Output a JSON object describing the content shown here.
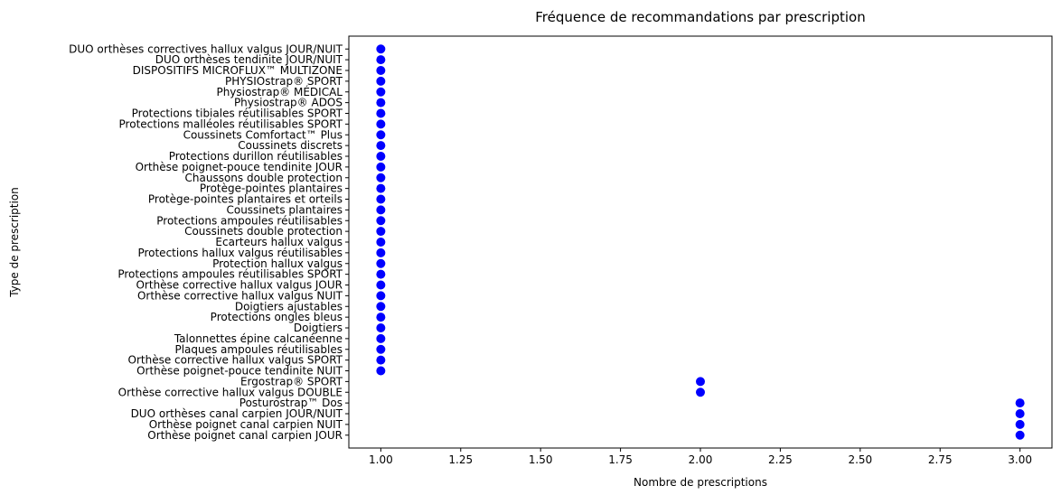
{
  "chart_data": {
    "type": "scatter",
    "title": "Fréquence de recommandations par prescription",
    "xlabel": "Nombre de prescriptions",
    "ylabel": "Type de prescription",
    "xlim": [
      0.9,
      3.1
    ],
    "xticks": [
      "1.00",
      "1.25",
      "1.50",
      "1.75",
      "2.00",
      "2.25",
      "2.50",
      "2.75",
      "3.00"
    ],
    "xtick_values": [
      1.0,
      1.25,
      1.5,
      1.75,
      2.0,
      2.25,
      2.5,
      2.75,
      3.0
    ],
    "grid": false,
    "marker_color": "#0000ff",
    "categories": [
      "Orthèse poignet canal carpien JOUR",
      "Orthèse poignet canal carpien NUIT",
      "DUO orthèses canal carpien JOUR/NUIT",
      "Posturostrap™ Dos",
      "Orthèse corrective hallux valgus DOUBLE",
      "Ergostrap® SPORT",
      "Orthèse poignet-pouce tendinite NUIT",
      "Orthèse corrective hallux valgus SPORT",
      "Plaques ampoules réutilisables",
      "Talonnettes épine calcanéenne",
      "Doigtiers",
      "Protections ongles bleus",
      "Doigtiers ajustables",
      "Orthèse corrective hallux valgus NUIT",
      "Orthèse corrective hallux valgus JOUR",
      "Protections ampoules réutilisables SPORT",
      "Protection hallux valgus",
      "Protections hallux valgus réutilisables",
      "Ecarteurs hallux valgus",
      "Coussinets double protection",
      "Protections ampoules réutilisables",
      "Coussinets plantaires",
      "Protège-pointes plantaires et orteils",
      "Protège-pointes plantaires",
      "Chaussons double protection",
      "Orthèse poignet-pouce tendinite JOUR",
      "Protections durillon réutilisables",
      "Coussinets discrets",
      "Coussinets Comfortact™ Plus",
      "Protections malléoles réutilisables SPORT",
      "Protections tibiales réutilisables SPORT",
      "Physiostrap® ADOS",
      "Physiostrap® MÉDICAL",
      "PHYSIOstrap® SPORT",
      "DISPOSITIFS MICROFLUX™ MULTIZONE",
      "DUO orthèses tendinite JOUR/NUIT",
      "DUO orthèses correctives hallux valgus JOUR/NUIT"
    ],
    "values": [
      3,
      3,
      3,
      3,
      2,
      2,
      1,
      1,
      1,
      1,
      1,
      1,
      1,
      1,
      1,
      1,
      1,
      1,
      1,
      1,
      1,
      1,
      1,
      1,
      1,
      1,
      1,
      1,
      1,
      1,
      1,
      1,
      1,
      1,
      1,
      1,
      1
    ]
  }
}
